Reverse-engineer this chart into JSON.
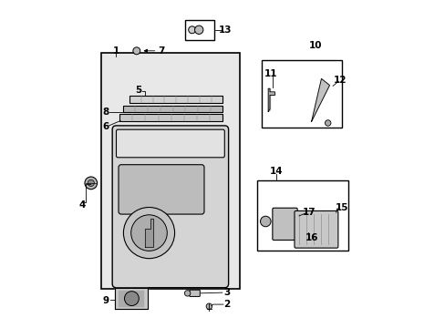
{
  "bg_color": "#ffffff",
  "line_color": "#000000",
  "gray_fill": "#d8d8d8",
  "light_gray": "#e8e8e8"
}
